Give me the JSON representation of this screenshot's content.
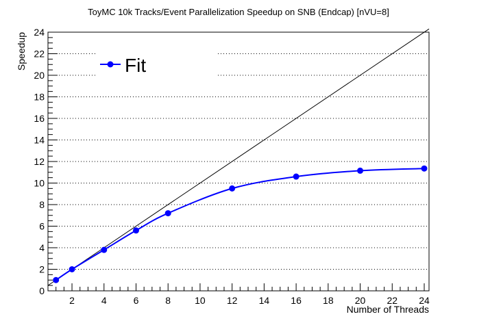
{
  "chart_data": {
    "type": "line",
    "title": "ToyMC 10k Tracks/Event Parallelization Speedup on SNB (Endcap) [nVU=8]",
    "xlabel": "Number of Threads",
    "ylabel": "Speedup",
    "xlim": [
      0.5,
      24.3
    ],
    "ylim": [
      0,
      24
    ],
    "x_ticks": [
      2,
      4,
      6,
      8,
      10,
      12,
      14,
      16,
      18,
      20,
      22,
      24
    ],
    "y_ticks": [
      0,
      2,
      4,
      6,
      8,
      10,
      12,
      14,
      16,
      18,
      20,
      22,
      24
    ],
    "grid": "horizontal dotted",
    "legend_position": "top-left",
    "series": [
      {
        "name": "Fit",
        "color": "#0000ff",
        "marker": "circle",
        "x": [
          1,
          2,
          4,
          6,
          8,
          12,
          16,
          20,
          24
        ],
        "y": [
          1.0,
          2.0,
          3.8,
          5.6,
          7.2,
          9.5,
          10.6,
          11.15,
          11.35
        ]
      }
    ],
    "reference_line": {
      "color": "#000000",
      "x": [
        0.5,
        24.3
      ],
      "y": [
        0.5,
        24.3
      ]
    }
  }
}
